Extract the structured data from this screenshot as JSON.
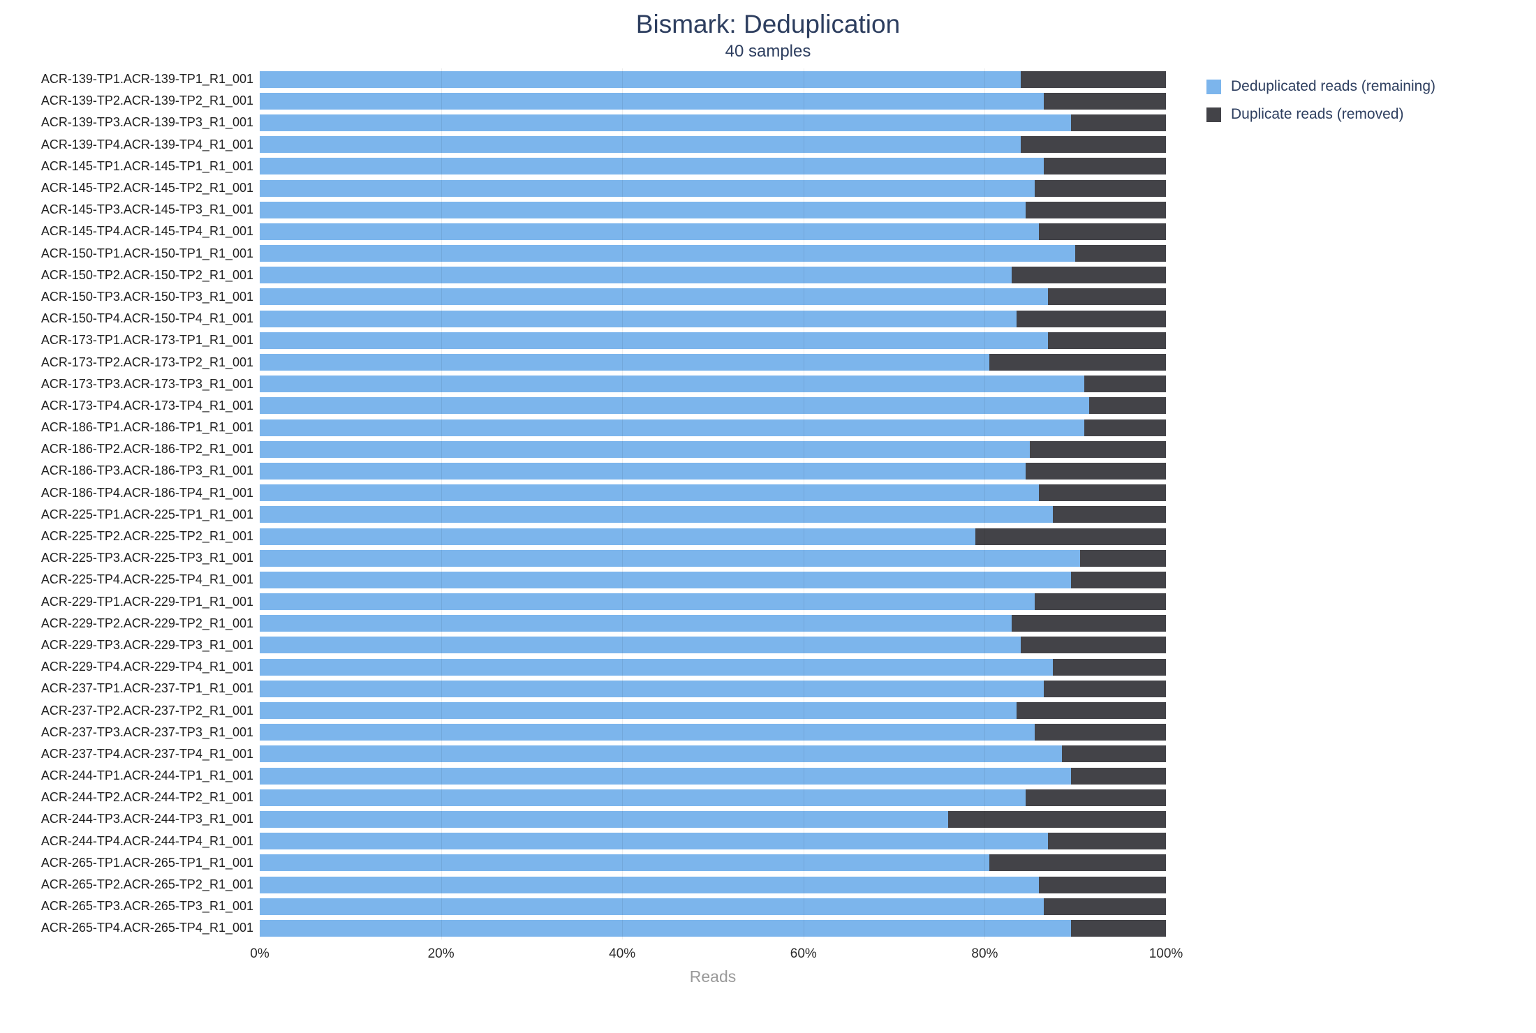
{
  "chart": {
    "title": "Bismark: Deduplication",
    "subtitle": "40 samples",
    "xlabel": "Reads"
  },
  "legend": [
    {
      "name": "deduplicated-reads",
      "label": "Deduplicated reads (remaining)",
      "color": "#7cb5ec"
    },
    {
      "name": "duplicate-reads",
      "label": "Duplicate reads (removed)",
      "color": "#434348"
    }
  ],
  "chart_data": {
    "type": "bar",
    "orientation": "horizontal",
    "stacked": true,
    "title": "Bismark: Deduplication",
    "subtitle": "40 samples",
    "xlabel": "Reads",
    "xlim": [
      0,
      100
    ],
    "xticks": [
      "0%",
      "20%",
      "40%",
      "60%",
      "80%",
      "100%"
    ],
    "grid": true,
    "legend_position": "right",
    "categories": [
      "ACR-139-TP1.ACR-139-TP1_R1_001",
      "ACR-139-TP2.ACR-139-TP2_R1_001",
      "ACR-139-TP3.ACR-139-TP3_R1_001",
      "ACR-139-TP4.ACR-139-TP4_R1_001",
      "ACR-145-TP1.ACR-145-TP1_R1_001",
      "ACR-145-TP2.ACR-145-TP2_R1_001",
      "ACR-145-TP3.ACR-145-TP3_R1_001",
      "ACR-145-TP4.ACR-145-TP4_R1_001",
      "ACR-150-TP1.ACR-150-TP1_R1_001",
      "ACR-150-TP2.ACR-150-TP2_R1_001",
      "ACR-150-TP3.ACR-150-TP3_R1_001",
      "ACR-150-TP4.ACR-150-TP4_R1_001",
      "ACR-173-TP1.ACR-173-TP1_R1_001",
      "ACR-173-TP2.ACR-173-TP2_R1_001",
      "ACR-173-TP3.ACR-173-TP3_R1_001",
      "ACR-173-TP4.ACR-173-TP4_R1_001",
      "ACR-186-TP1.ACR-186-TP1_R1_001",
      "ACR-186-TP2.ACR-186-TP2_R1_001",
      "ACR-186-TP3.ACR-186-TP3_R1_001",
      "ACR-186-TP4.ACR-186-TP4_R1_001",
      "ACR-225-TP1.ACR-225-TP1_R1_001",
      "ACR-225-TP2.ACR-225-TP2_R1_001",
      "ACR-225-TP3.ACR-225-TP3_R1_001",
      "ACR-225-TP4.ACR-225-TP4_R1_001",
      "ACR-229-TP1.ACR-229-TP1_R1_001",
      "ACR-229-TP2.ACR-229-TP2_R1_001",
      "ACR-229-TP3.ACR-229-TP3_R1_001",
      "ACR-229-TP4.ACR-229-TP4_R1_001",
      "ACR-237-TP1.ACR-237-TP1_R1_001",
      "ACR-237-TP2.ACR-237-TP2_R1_001",
      "ACR-237-TP3.ACR-237-TP3_R1_001",
      "ACR-237-TP4.ACR-237-TP4_R1_001",
      "ACR-244-TP1.ACR-244-TP1_R1_001",
      "ACR-244-TP2.ACR-244-TP2_R1_001",
      "ACR-244-TP3.ACR-244-TP3_R1_001",
      "ACR-244-TP4.ACR-244-TP4_R1_001",
      "ACR-265-TP1.ACR-265-TP1_R1_001",
      "ACR-265-TP2.ACR-265-TP2_R1_001",
      "ACR-265-TP3.ACR-265-TP3_R1_001",
      "ACR-265-TP4.ACR-265-TP4_R1_001"
    ],
    "series": [
      {
        "name": "Deduplicated reads (remaining)",
        "color": "#7cb5ec",
        "values": [
          84,
          86.5,
          89.5,
          84,
          86.5,
          85.5,
          84.5,
          86,
          90,
          83,
          87,
          83.5,
          87,
          80.5,
          91,
          91.5,
          91,
          85,
          84.5,
          86,
          87.5,
          79,
          90.5,
          89.5,
          85.5,
          83,
          84,
          87.5,
          86.5,
          83.5,
          85.5,
          88.5,
          89.5,
          84.5,
          76,
          87,
          80.5,
          86,
          86.5,
          89.5
        ]
      },
      {
        "name": "Duplicate reads (removed)",
        "color": "#434348",
        "values": [
          16,
          13.5,
          10.5,
          16,
          13.5,
          14.5,
          15.5,
          14,
          10,
          17,
          13,
          16.5,
          13,
          19.5,
          9,
          8.5,
          9,
          15,
          15.5,
          14,
          12.5,
          21,
          9.5,
          10.5,
          14.5,
          17,
          16,
          12.5,
          13.5,
          16.5,
          14.5,
          11.5,
          10.5,
          15.5,
          24,
          13,
          19.5,
          14,
          13.5,
          10.5
        ]
      }
    ]
  }
}
